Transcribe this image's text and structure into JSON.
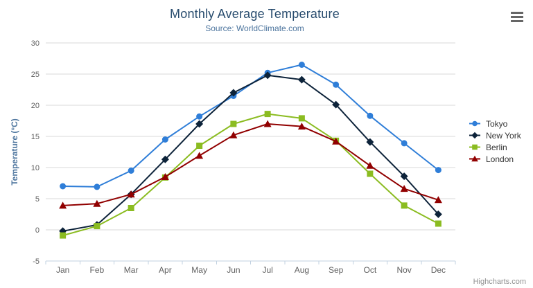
{
  "chart": {
    "title": "Monthly Average Temperature",
    "subtitle": "Source: WorldClimate.com",
    "credits": "Highcharts.com",
    "context_menu_icon": "hamburger-icon"
  },
  "chart_data": {
    "type": "line",
    "title": "Monthly Average Temperature",
    "subtitle": "Source: WorldClimate.com",
    "xlabel": "",
    "ylabel": "Temperature (°C)",
    "ylim": [
      -5,
      30
    ],
    "ytick_step": 5,
    "grid": true,
    "legend_position": "right",
    "categories": [
      "Jan",
      "Feb",
      "Mar",
      "Apr",
      "May",
      "Jun",
      "Jul",
      "Aug",
      "Sep",
      "Oct",
      "Nov",
      "Dec"
    ],
    "series": [
      {
        "name": "Tokyo",
        "color": "#2f7ed8",
        "marker": "circle",
        "values": [
          7.0,
          6.9,
          9.5,
          14.5,
          18.2,
          21.5,
          25.2,
          26.5,
          23.3,
          18.3,
          13.9,
          9.6
        ]
      },
      {
        "name": "New York",
        "color": "#0d233a",
        "marker": "diamond",
        "values": [
          -0.2,
          0.8,
          5.7,
          11.3,
          17.0,
          22.0,
          24.8,
          24.1,
          20.1,
          14.1,
          8.6,
          2.5
        ]
      },
      {
        "name": "Berlin",
        "color": "#8bbc21",
        "marker": "square",
        "values": [
          -0.9,
          0.6,
          3.5,
          8.4,
          13.5,
          17.0,
          18.6,
          17.9,
          14.3,
          9.0,
          3.9,
          1.0
        ]
      },
      {
        "name": "London",
        "color": "#910000",
        "marker": "triangle",
        "values": [
          3.9,
          4.2,
          5.7,
          8.5,
          11.9,
          15.2,
          17.0,
          16.6,
          14.2,
          10.3,
          6.6,
          4.8
        ]
      }
    ]
  },
  "theme": {
    "background": "#ffffff",
    "title_color": "#274b6d",
    "subtitle_color": "#4d759e",
    "axis_title_color": "#4d759e",
    "axis_label_color": "#606060",
    "grid_color": "#d8d8d8",
    "axis_line_color": "#c0d0e0",
    "legend_text_color": "#333333",
    "credits_color": "#909090",
    "menu_icon_color": "#666666"
  }
}
